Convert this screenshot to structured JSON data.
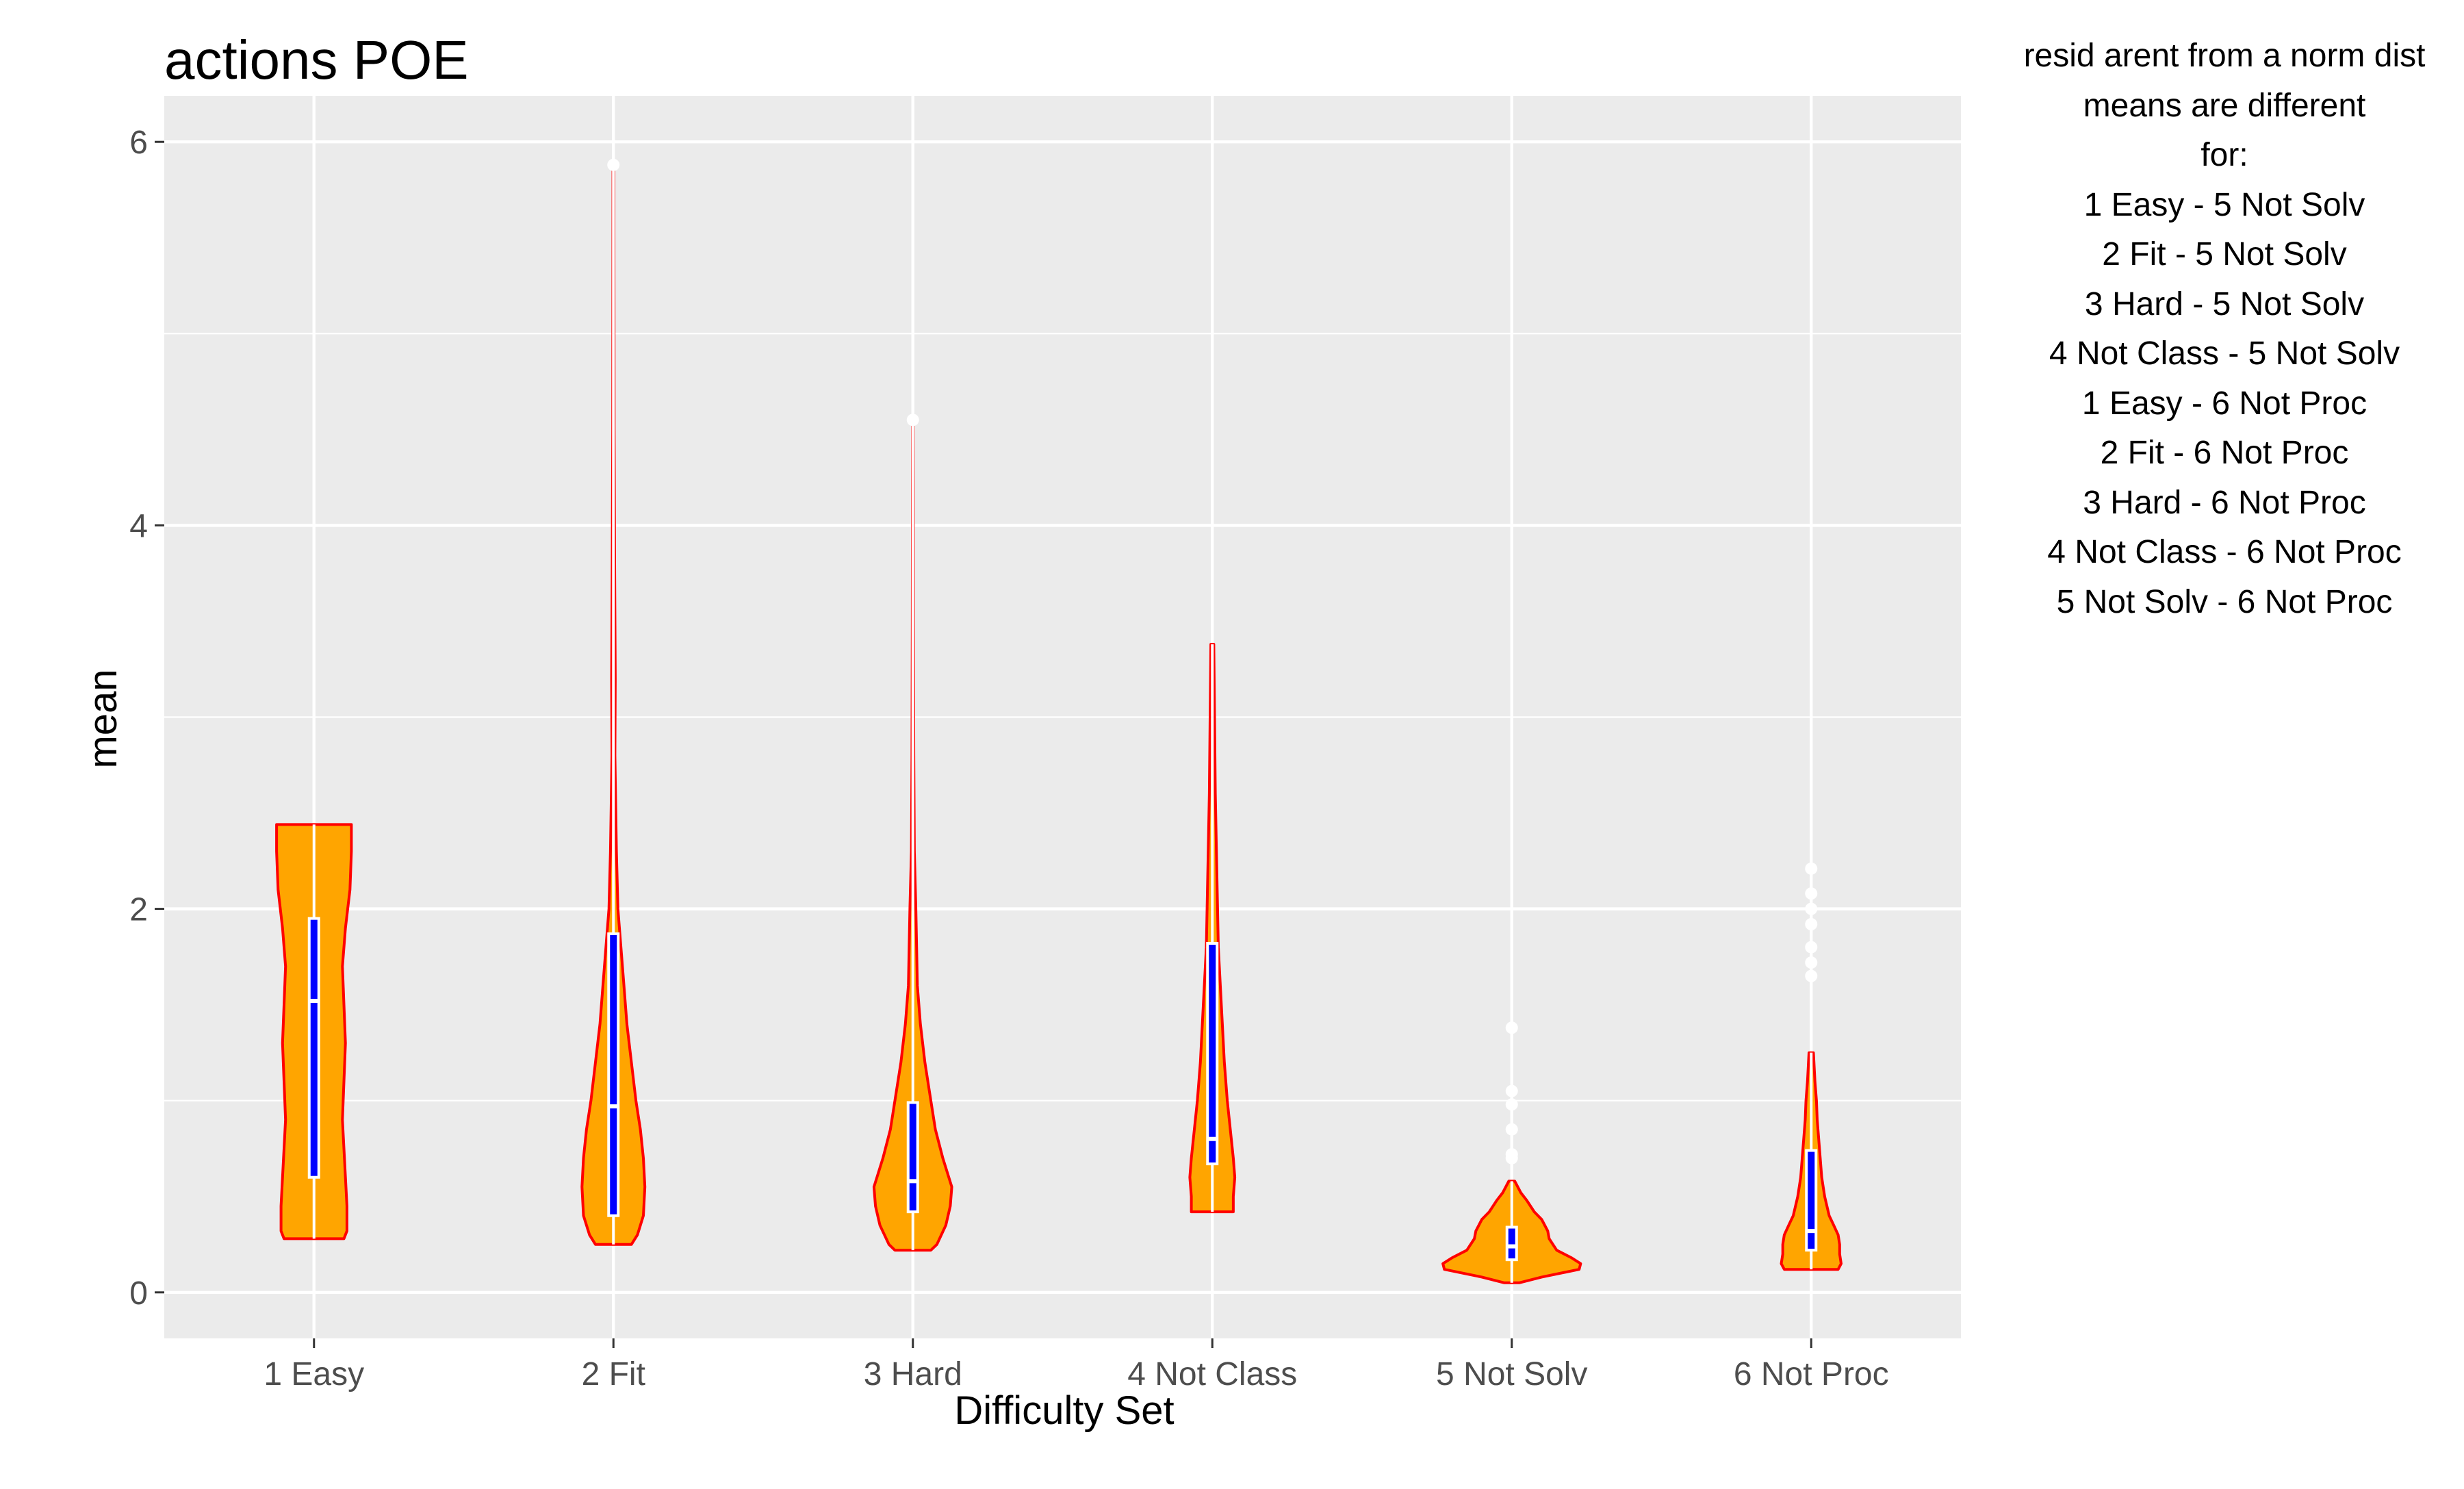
{
  "chart_data": {
    "type": "violin",
    "title": "actions POE",
    "xlabel": "Difficulty Set",
    "ylabel": "mean",
    "ylim": [
      -0.24,
      6.24
    ],
    "yticks": [
      0,
      2,
      4,
      6
    ],
    "grid": true,
    "colors": {
      "panel": "#EBEBEB",
      "grid": "#FFFFFF",
      "violin_fill": "#FFA500",
      "violin_stroke": "#FF0000",
      "box": "#0000FF"
    },
    "categories": [
      "1 Easy",
      "2 Fit",
      "3 Hard",
      "4 Not Class",
      "5 Not Solv",
      "6 Not Proc"
    ],
    "groups": [
      {
        "min": 0.28,
        "max": 2.44,
        "q1": 0.6,
        "median": 1.52,
        "q3": 1.95,
        "outliers": [],
        "profile": [
          [
            0.28,
            0.2
          ],
          [
            0.32,
            0.22
          ],
          [
            0.45,
            0.22
          ],
          [
            0.6,
            0.21
          ],
          [
            0.75,
            0.2
          ],
          [
            0.9,
            0.19
          ],
          [
            1.1,
            0.2
          ],
          [
            1.3,
            0.21
          ],
          [
            1.5,
            0.2
          ],
          [
            1.7,
            0.19
          ],
          [
            1.9,
            0.21
          ],
          [
            2.1,
            0.24
          ],
          [
            2.3,
            0.25
          ],
          [
            2.44,
            0.25
          ]
        ]
      },
      {
        "min": 0.25,
        "max": 5.9,
        "q1": 0.4,
        "median": 0.97,
        "q3": 1.87,
        "outliers": [
          5.88
        ],
        "profile": [
          [
            0.25,
            0.12
          ],
          [
            0.3,
            0.16
          ],
          [
            0.4,
            0.2
          ],
          [
            0.55,
            0.21
          ],
          [
            0.7,
            0.2
          ],
          [
            0.85,
            0.18
          ],
          [
            1.0,
            0.15
          ],
          [
            1.2,
            0.12
          ],
          [
            1.4,
            0.09
          ],
          [
            1.6,
            0.07
          ],
          [
            1.8,
            0.05
          ],
          [
            2.0,
            0.03
          ],
          [
            2.3,
            0.02
          ],
          [
            2.8,
            0.01
          ],
          [
            3.2,
            0.012
          ],
          [
            3.8,
            0.008
          ],
          [
            4.5,
            0.005
          ],
          [
            5.2,
            0.004
          ],
          [
            5.9,
            0.003
          ]
        ]
      },
      {
        "min": 0.22,
        "max": 4.55,
        "q1": 0.42,
        "median": 0.58,
        "q3": 0.99,
        "outliers": [
          4.55
        ],
        "profile": [
          [
            0.22,
            0.12
          ],
          [
            0.25,
            0.16
          ],
          [
            0.35,
            0.22
          ],
          [
            0.45,
            0.25
          ],
          [
            0.55,
            0.26
          ],
          [
            0.7,
            0.2
          ],
          [
            0.85,
            0.15
          ],
          [
            1.0,
            0.12
          ],
          [
            1.2,
            0.08
          ],
          [
            1.4,
            0.05
          ],
          [
            1.6,
            0.03
          ],
          [
            1.8,
            0.025
          ],
          [
            2.0,
            0.02
          ],
          [
            2.3,
            0.01
          ],
          [
            2.8,
            0.006
          ],
          [
            3.5,
            0.004
          ],
          [
            4.2,
            0.003
          ],
          [
            4.55,
            0.002
          ]
        ]
      },
      {
        "min": 0.42,
        "max": 3.38,
        "q1": 0.67,
        "median": 0.8,
        "q3": 1.82,
        "outliers": [],
        "profile": [
          [
            0.42,
            0.14
          ],
          [
            0.5,
            0.14
          ],
          [
            0.6,
            0.15
          ],
          [
            0.7,
            0.14
          ],
          [
            0.85,
            0.12
          ],
          [
            1.0,
            0.1
          ],
          [
            1.2,
            0.08
          ],
          [
            1.5,
            0.06
          ],
          [
            1.8,
            0.04
          ],
          [
            2.2,
            0.03
          ],
          [
            2.6,
            0.02
          ],
          [
            3.0,
            0.015
          ],
          [
            3.38,
            0.01
          ]
        ]
      },
      {
        "min": 0.05,
        "max": 0.58,
        "q1": 0.17,
        "median": 0.24,
        "q3": 0.34,
        "outliers": [
          0.7,
          0.72,
          0.85,
          0.98,
          1.05,
          1.38
        ],
        "profile": [
          [
            0.05,
            0.05
          ],
          [
            0.08,
            0.2
          ],
          [
            0.12,
            0.45
          ],
          [
            0.15,
            0.46
          ],
          [
            0.18,
            0.4
          ],
          [
            0.22,
            0.3
          ],
          [
            0.28,
            0.25
          ],
          [
            0.32,
            0.24
          ],
          [
            0.38,
            0.2
          ],
          [
            0.42,
            0.15
          ],
          [
            0.48,
            0.1
          ],
          [
            0.52,
            0.06
          ],
          [
            0.55,
            0.04
          ],
          [
            0.58,
            0.02
          ]
        ]
      },
      {
        "min": 0.12,
        "max": 1.25,
        "q1": 0.22,
        "median": 0.32,
        "q3": 0.74,
        "outliers": [
          1.65,
          1.72,
          1.8,
          1.92,
          2.0,
          2.08,
          2.21
        ],
        "profile": [
          [
            0.12,
            0.18
          ],
          [
            0.15,
            0.2
          ],
          [
            0.2,
            0.19
          ],
          [
            0.25,
            0.19
          ],
          [
            0.3,
            0.18
          ],
          [
            0.35,
            0.15
          ],
          [
            0.4,
            0.12
          ],
          [
            0.5,
            0.09
          ],
          [
            0.6,
            0.07
          ],
          [
            0.7,
            0.06
          ],
          [
            0.8,
            0.05
          ],
          [
            0.9,
            0.04
          ],
          [
            1.0,
            0.035
          ],
          [
            1.1,
            0.025
          ],
          [
            1.25,
            0.015
          ]
        ]
      }
    ]
  },
  "annotation": {
    "lines": [
      "resid arent from a norm dist",
      "means are different",
      "for:",
      "1 Easy - 5 Not Solv",
      "2 Fit - 5 Not Solv",
      "3 Hard - 5 Not Solv",
      "4 Not Class - 5 Not Solv",
      "1 Easy - 6 Not Proc",
      "2 Fit - 6 Not Proc",
      "3 Hard - 6 Not Proc",
      "4 Not Class - 6 Not Proc",
      "5 Not Solv - 6 Not Proc"
    ]
  }
}
